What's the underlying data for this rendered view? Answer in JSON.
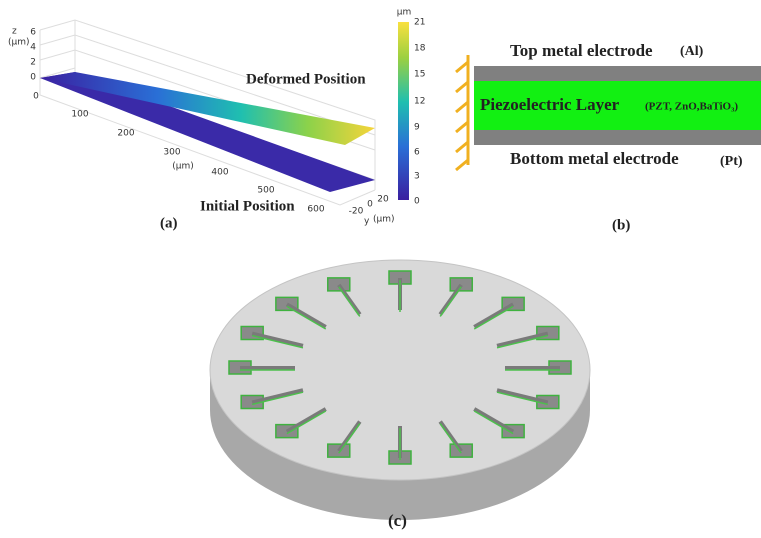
{
  "panel_a": {
    "label": "(a)",
    "z_axis": {
      "title": "z",
      "unit": "(μm)",
      "ticks": [
        6,
        4,
        2,
        0
      ]
    },
    "x_axis": {
      "unit": "(μm)",
      "ticks": [
        0,
        100,
        200,
        300,
        400,
        500,
        600
      ]
    },
    "y_axis": {
      "title": "y",
      "unit": "(μm)",
      "ticks": [
        -20,
        0,
        20
      ]
    },
    "colorbar": {
      "unit": "μm",
      "ticks": [
        21,
        18,
        15,
        12,
        9,
        6,
        3,
        0
      ]
    },
    "deformed_label": "Deformed Position",
    "initial_label": "Initial Position"
  },
  "panel_b": {
    "label": "(b)",
    "top": "Top metal electrode",
    "top_material": "(Al)",
    "middle": "Piezoelectric Layer",
    "middle_materials": "(PZT, ZnO,BaTiO₃)",
    "bottom": "Bottom metal electrode",
    "bottom_material": "(Pt)"
  },
  "panel_c": {
    "label": "(c)"
  }
}
